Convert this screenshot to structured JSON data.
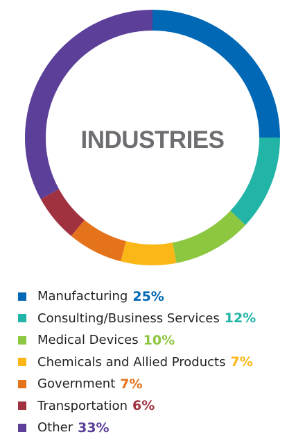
{
  "chart_data": {
    "type": "pie",
    "title": "INDUSTRIES",
    "style": "donut",
    "start_angle": "top",
    "direction": "clockwise",
    "legend_position": "bottom-left",
    "slices": [
      {
        "label": "Manufacturing",
        "value": 25,
        "value_label": "25%",
        "color": "#0068b5"
      },
      {
        "label": "Consulting/Business Services",
        "value": 12,
        "value_label": "12%",
        "color": "#22b4a6"
      },
      {
        "label": "Medical Devices",
        "value": 10,
        "value_label": "10%",
        "color": "#8dc63f"
      },
      {
        "label": "Chemicals and Allied Products",
        "value": 7,
        "value_label": "7%",
        "color": "#fbb617"
      },
      {
        "label": "Government",
        "value": 7,
        "value_label": "7%",
        "color": "#e5731c"
      },
      {
        "label": "Transportation",
        "value": 6,
        "value_label": "6%",
        "color": "#a0323f"
      },
      {
        "label": "Other",
        "value": 33,
        "value_label": "33%",
        "color": "#5b3f98"
      }
    ]
  }
}
